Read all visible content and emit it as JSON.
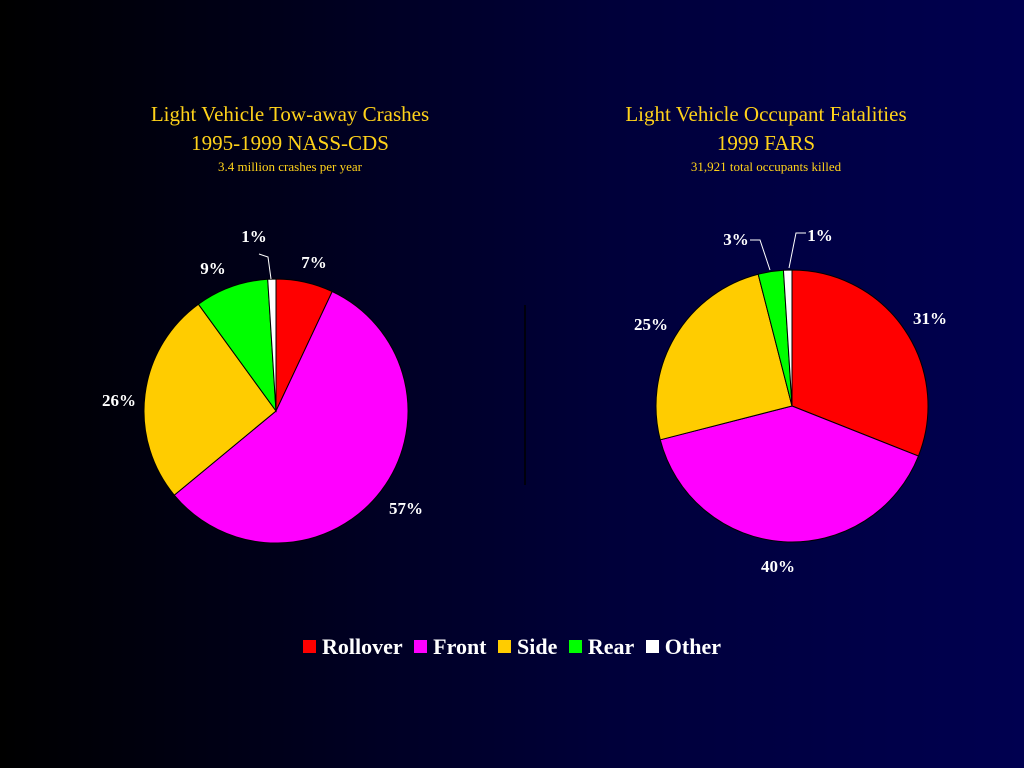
{
  "colors": {
    "Rollover": "#ff0000",
    "Front": "#ff00ff",
    "Side": "#ffcc00",
    "Rear": "#00ff00",
    "Other": "#ffffff",
    "title": "#ffd21a"
  },
  "chart_data": [
    {
      "type": "pie",
      "title": "Light Vehicle Tow-away Crashes",
      "subtitle": "1995-1999 NASS-CDS",
      "note": "3.4 million  crashes per year",
      "categories": [
        "Rollover",
        "Front",
        "Side",
        "Rear",
        "Other"
      ],
      "values": [
        7,
        57,
        26,
        9,
        1
      ],
      "labels": [
        "7%",
        "57%",
        "26%",
        "9%",
        "1%"
      ]
    },
    {
      "type": "pie",
      "title": "Light Vehicle Occupant Fatalities",
      "subtitle": "1999 FARS",
      "note": "31,921 total occupants killed",
      "categories": [
        "Rollover",
        "Front",
        "Side",
        "Rear",
        "Other"
      ],
      "values": [
        31,
        40,
        25,
        3,
        1
      ],
      "labels": [
        "31%",
        "40%",
        "25%",
        "3%",
        "1%"
      ]
    }
  ],
  "legend": {
    "items": [
      {
        "name": "Rollover",
        "color": "#ff0000"
      },
      {
        "name": "Front",
        "color": "#ff00ff"
      },
      {
        "name": "Side",
        "color": "#ffcc00"
      },
      {
        "name": "Rear",
        "color": "#00ff00"
      },
      {
        "name": "Other",
        "color": "#ffffff"
      }
    ]
  }
}
